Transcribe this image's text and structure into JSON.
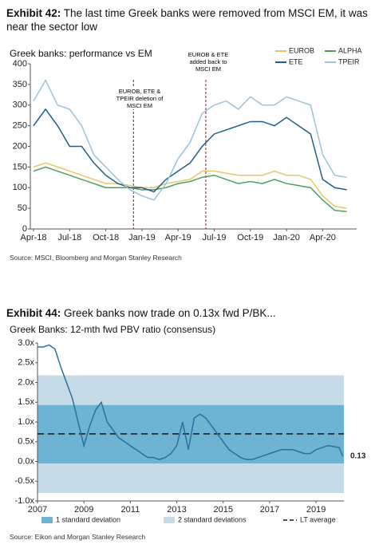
{
  "chart_data": [
    {
      "type": "line",
      "exhibit": "Exhibit 42:",
      "title": "The last time Greek banks were removed from MSCI EM, it was near the sector low",
      "subtitle": "Greek banks: performance vs EM",
      "x": [
        "Apr-18",
        "May-18",
        "Jun-18",
        "Jul-18",
        "Aug-18",
        "Sep-18",
        "Oct-18",
        "Nov-18",
        "Dec-18",
        "Jan-19",
        "Feb-19",
        "Mar-19",
        "Apr-19",
        "May-19",
        "Jun-19",
        "Jul-19",
        "Aug-19",
        "Sep-19",
        "Oct-19",
        "Nov-19",
        "Dec-19",
        "Jan-20",
        "Feb-20",
        "Mar-20",
        "Apr-20",
        "May-20",
        "Jun-20"
      ],
      "xticks": [
        "Apr-18",
        "Jul-18",
        "Oct-18",
        "Jan-19",
        "Apr-19",
        "Jul-19",
        "Oct-19",
        "Jan-20",
        "Apr-20"
      ],
      "ylim": [
        0,
        400
      ],
      "yticks": [
        0,
        50,
        100,
        150,
        200,
        250,
        300,
        350,
        400
      ],
      "series": [
        {
          "name": "EUROB",
          "color": "#e8c66a",
          "values": [
            150,
            160,
            150,
            140,
            130,
            120,
            110,
            110,
            105,
            100,
            100,
            110,
            115,
            120,
            140,
            140,
            135,
            130,
            130,
            130,
            140,
            130,
            130,
            120,
            80,
            55,
            50
          ]
        },
        {
          "name": "ALPHA",
          "color": "#4f9e5e",
          "values": [
            140,
            150,
            140,
            130,
            120,
            110,
            100,
            100,
            100,
            95,
            95,
            100,
            110,
            115,
            125,
            130,
            120,
            110,
            115,
            110,
            120,
            110,
            105,
            100,
            70,
            45,
            42
          ]
        },
        {
          "name": "ETE",
          "color": "#1f5f8b",
          "values": [
            250,
            290,
            250,
            200,
            200,
            160,
            130,
            110,
            100,
            100,
            90,
            120,
            140,
            160,
            200,
            230,
            240,
            250,
            260,
            260,
            250,
            270,
            250,
            230,
            120,
            100,
            95
          ]
        },
        {
          "name": "TPEIR",
          "color": "#9cc3da",
          "values": [
            310,
            360,
            300,
            290,
            250,
            180,
            150,
            120,
            95,
            80,
            70,
            110,
            170,
            210,
            280,
            300,
            310,
            290,
            320,
            300,
            300,
            320,
            310,
            300,
            180,
            130,
            125
          ]
        }
      ],
      "annotations": [
        "EUROB, ETE & TPEIR deletion of MSCI EM",
        "EUROB & ETE added back to MSCI EM"
      ],
      "source": "Source: MSCI, Bloomberg and Morgan Stanley Research"
    },
    {
      "type": "line",
      "exhibit": "Exhibit 44:",
      "title": "Greek banks now trade on 0.13x fwd P/BK...",
      "subtitle": "Greek Banks: 12-mth fwd PBV ratio (consensus)",
      "xlim": [
        2007,
        2020.2
      ],
      "xticks": [
        2007,
        2009,
        2011,
        2013,
        2015,
        2017,
        2019
      ],
      "ylim": [
        -1,
        3
      ],
      "yticks": [
        {
          "value": 3,
          "label": "3.0x"
        },
        {
          "value": 2.5,
          "label": "2.5x"
        },
        {
          "value": 2,
          "label": "2.0x"
        },
        {
          "value": 1.5,
          "label": "1.5x"
        },
        {
          "value": 1,
          "label": "1.0x"
        },
        {
          "value": 0.5,
          "label": "0.5x"
        },
        {
          "value": 0,
          "label": "0.0x"
        },
        {
          "value": -0.5,
          "label": "-0.5x"
        },
        {
          "value": -1,
          "label": "-1.0x"
        }
      ],
      "bands": [
        {
          "name": "2 standard deviations",
          "low": -0.8,
          "high": 2.18,
          "color": "#c7dbe7"
        },
        {
          "name": "1 standard deviation",
          "low": -0.05,
          "high": 1.43,
          "color": "#6fb3d3"
        }
      ],
      "lt_average": {
        "name": "LT average",
        "value": 0.7
      },
      "series": [
        {
          "color": "#2a6f9e",
          "x": [
            2007,
            2007.25,
            2007.5,
            2007.75,
            2008,
            2008.25,
            2008.5,
            2008.75,
            2009,
            2009.25,
            2009.5,
            2009.75,
            2010,
            2010.25,
            2010.5,
            2010.75,
            2011,
            2011.25,
            2011.5,
            2011.75,
            2012,
            2012.25,
            2012.5,
            2012.75,
            2013,
            2013.25,
            2013.5,
            2013.75,
            2014,
            2014.25,
            2014.5,
            2014.75,
            2015,
            2015.25,
            2015.5,
            2015.75,
            2016,
            2016.25,
            2016.5,
            2016.75,
            2017,
            2017.25,
            2017.5,
            2017.75,
            2018,
            2018.25,
            2018.5,
            2018.75,
            2019,
            2019.25,
            2019.5,
            2019.75,
            2020,
            2020.15
          ],
          "values": [
            2.9,
            2.9,
            2.95,
            2.85,
            2.4,
            2.0,
            1.6,
            1.0,
            0.4,
            0.9,
            1.3,
            1.5,
            1.0,
            0.8,
            0.6,
            0.5,
            0.4,
            0.3,
            0.2,
            0.1,
            0.1,
            0.05,
            0.1,
            0.2,
            0.4,
            1.0,
            0.3,
            1.1,
            1.2,
            1.1,
            0.9,
            0.7,
            0.5,
            0.3,
            0.2,
            0.1,
            0.05,
            0.05,
            0.1,
            0.15,
            0.2,
            0.25,
            0.3,
            0.3,
            0.3,
            0.25,
            0.2,
            0.2,
            0.3,
            0.35,
            0.4,
            0.38,
            0.35,
            0.13
          ]
        }
      ],
      "source": "Source: Eikon and Morgan Stanley Research"
    }
  ]
}
